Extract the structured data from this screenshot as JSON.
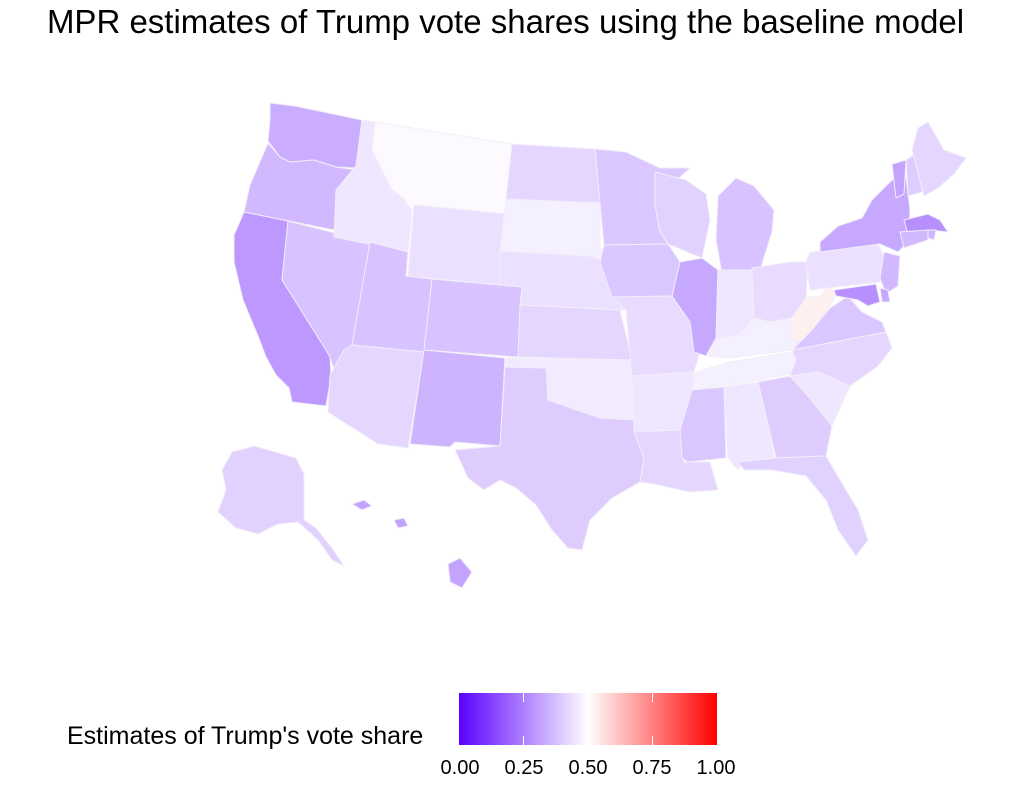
{
  "title": "MPR estimates of Trump vote shares using the baseline model",
  "legend": {
    "title": "Estimates of Trump's vote share",
    "ticks": [
      "0.00",
      "0.25",
      "0.50",
      "0.75",
      "1.00"
    ],
    "colors": {
      "low": "#5b00ff",
      "mid": "#ffffff",
      "high": "#ff0000"
    }
  },
  "chart_data": {
    "type": "choropleth",
    "value_name": "Estimates of Trump's vote share",
    "scale": {
      "min": 0.0,
      "max": 1.0,
      "midpoint": 0.5
    },
    "states": [
      {
        "state": "WA",
        "value": 0.34
      },
      {
        "state": "OR",
        "value": 0.36
      },
      {
        "state": "CA",
        "value": 0.3
      },
      {
        "state": "NV",
        "value": 0.38
      },
      {
        "state": "ID",
        "value": 0.45
      },
      {
        "state": "MT",
        "value": 0.49
      },
      {
        "state": "WY",
        "value": 0.44
      },
      {
        "state": "UT",
        "value": 0.38
      },
      {
        "state": "AZ",
        "value": 0.42
      },
      {
        "state": "CO",
        "value": 0.38
      },
      {
        "state": "NM",
        "value": 0.35
      },
      {
        "state": "ND",
        "value": 0.42
      },
      {
        "state": "SD",
        "value": 0.47
      },
      {
        "state": "NE",
        "value": 0.44
      },
      {
        "state": "KS",
        "value": 0.42
      },
      {
        "state": "OK",
        "value": 0.46
      },
      {
        "state": "TX",
        "value": 0.4
      },
      {
        "state": "MN",
        "value": 0.39
      },
      {
        "state": "IA",
        "value": 0.39
      },
      {
        "state": "MO",
        "value": 0.43
      },
      {
        "state": "AR",
        "value": 0.45
      },
      {
        "state": "LA",
        "value": 0.42
      },
      {
        "state": "WI",
        "value": 0.41
      },
      {
        "state": "IL",
        "value": 0.33
      },
      {
        "state": "MI",
        "value": 0.38
      },
      {
        "state": "IN",
        "value": 0.45
      },
      {
        "state": "OH",
        "value": 0.43
      },
      {
        "state": "KY",
        "value": 0.47
      },
      {
        "state": "TN",
        "value": 0.47
      },
      {
        "state": "MS",
        "value": 0.39
      },
      {
        "state": "AL",
        "value": 0.45
      },
      {
        "state": "GA",
        "value": 0.4
      },
      {
        "state": "FL",
        "value": 0.41
      },
      {
        "state": "SC",
        "value": 0.45
      },
      {
        "state": "NC",
        "value": 0.42
      },
      {
        "state": "VA",
        "value": 0.39
      },
      {
        "state": "WV",
        "value": 0.53
      },
      {
        "state": "PA",
        "value": 0.44
      },
      {
        "state": "NY",
        "value": 0.33
      },
      {
        "state": "VT",
        "value": 0.32
      },
      {
        "state": "NH",
        "value": 0.4
      },
      {
        "state": "ME",
        "value": 0.42
      },
      {
        "state": "MA",
        "value": 0.28
      },
      {
        "state": "RI",
        "value": 0.35
      },
      {
        "state": "CT",
        "value": 0.36
      },
      {
        "state": "NJ",
        "value": 0.36
      },
      {
        "state": "DE",
        "value": 0.33
      },
      {
        "state": "MD",
        "value": 0.28
      },
      {
        "state": "AK",
        "value": 0.41
      },
      {
        "state": "HI",
        "value": 0.32
      }
    ]
  }
}
